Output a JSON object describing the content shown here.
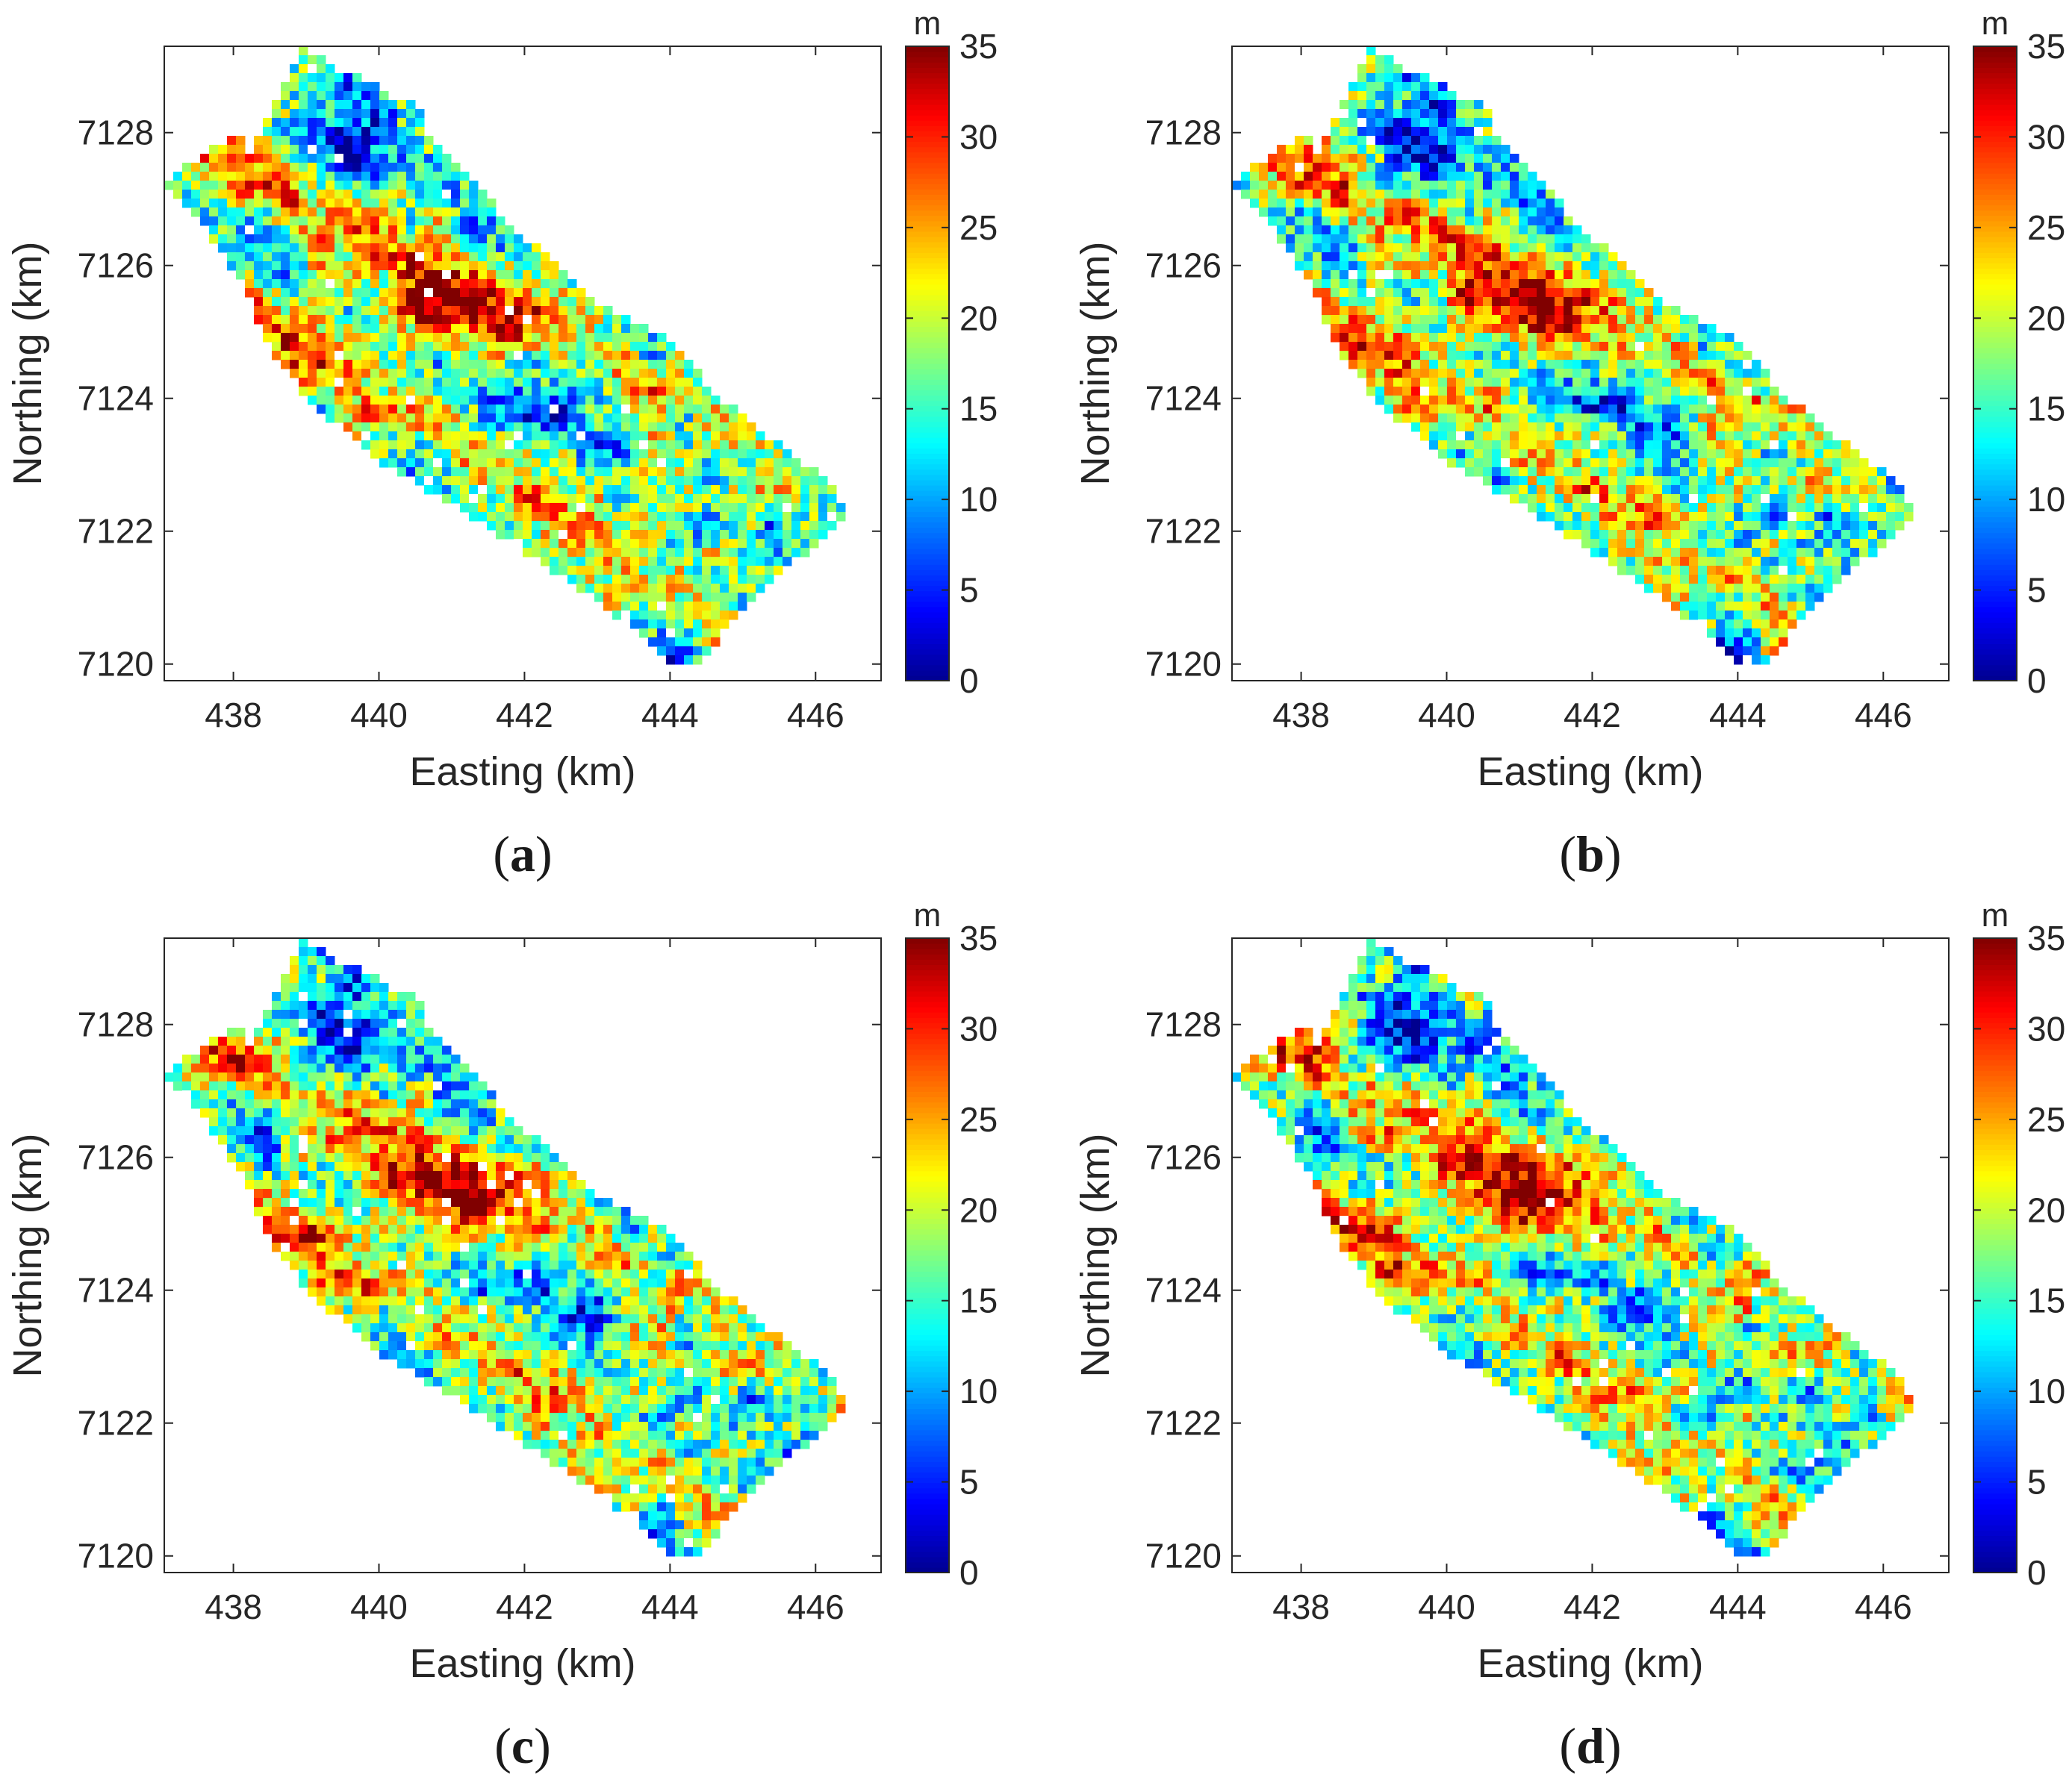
{
  "chart_data": [
    {
      "panel": "a",
      "type": "heatmap",
      "title": "",
      "xlabel": "Easting (km)",
      "ylabel": "Northing (km)",
      "xticks": [
        438,
        440,
        442,
        444,
        446
      ],
      "yticks": [
        7120,
        7122,
        7124,
        7126,
        7128
      ],
      "xlim": [
        437.05,
        446.9
      ],
      "ylim": [
        7119.75,
        7129.3
      ],
      "colorbar": {
        "label": "m",
        "min": 0,
        "max": 35,
        "ticks": [
          0,
          5,
          10,
          15,
          20,
          25,
          30,
          35
        ],
        "colormap": "jet"
      },
      "caption_open": "(",
      "caption_letter": "a",
      "caption_close": ")"
    },
    {
      "panel": "b",
      "type": "heatmap",
      "title": "",
      "xlabel": "Easting (km)",
      "ylabel": "Northing (km)",
      "xticks": [
        438,
        440,
        442,
        444,
        446
      ],
      "yticks": [
        7120,
        7122,
        7124,
        7126,
        7128
      ],
      "xlim": [
        437.05,
        446.9
      ],
      "ylim": [
        7119.75,
        7129.3
      ],
      "colorbar": {
        "label": "m",
        "min": 0,
        "max": 35,
        "ticks": [
          0,
          5,
          10,
          15,
          20,
          25,
          30,
          35
        ],
        "colormap": "jet"
      },
      "caption_open": "(",
      "caption_letter": "b",
      "caption_close": ")"
    },
    {
      "panel": "c",
      "type": "heatmap",
      "title": "",
      "xlabel": "Easting (km)",
      "ylabel": "Northing (km)",
      "xticks": [
        438,
        440,
        442,
        444,
        446
      ],
      "yticks": [
        7120,
        7122,
        7124,
        7126,
        7128
      ],
      "xlim": [
        437.05,
        446.9
      ],
      "ylim": [
        7119.75,
        7129.3
      ],
      "colorbar": {
        "label": "m",
        "min": 0,
        "max": 35,
        "ticks": [
          0,
          5,
          10,
          15,
          20,
          25,
          30,
          35
        ],
        "colormap": "jet"
      },
      "caption_open": "(",
      "caption_letter": "c",
      "caption_close": ")"
    },
    {
      "panel": "d",
      "type": "heatmap",
      "title": "",
      "xlabel": "Easting (km)",
      "ylabel": "Northing (km)",
      "xticks": [
        438,
        440,
        442,
        444,
        446
      ],
      "yticks": [
        7120,
        7122,
        7124,
        7126,
        7128
      ],
      "xlim": [
        437.05,
        446.9
      ],
      "ylim": [
        7119.75,
        7129.3
      ],
      "colorbar": {
        "label": "m",
        "min": 0,
        "max": 35,
        "ticks": [
          0,
          5,
          10,
          15,
          20,
          25,
          30,
          35
        ],
        "colormap": "jet"
      },
      "caption_open": "(",
      "caption_letter": "d",
      "caption_close": ")"
    }
  ],
  "colors": {
    "axis": "#262626",
    "background": "#ffffff",
    "jet_stops": [
      "#00008f",
      "#0000ff",
      "#0080ff",
      "#00ffff",
      "#80ff80",
      "#ffff00",
      "#ff8000",
      "#ff0000",
      "#800000"
    ]
  }
}
